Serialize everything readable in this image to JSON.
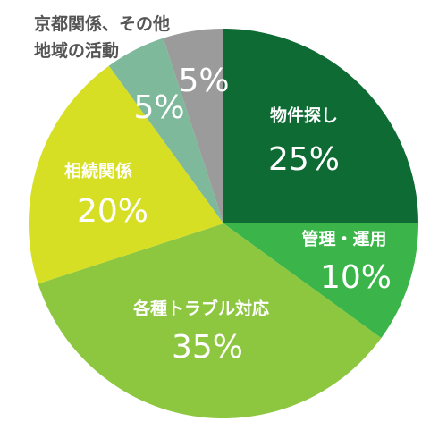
{
  "chart_data": {
    "type": "pie",
    "categories": [
      "物件探し",
      "管理・運用",
      "各種トラブル対応",
      "相続関係",
      null,
      "京都関係、その他地域の活動"
    ],
    "values": [
      25,
      10,
      35,
      20,
      5,
      5
    ],
    "value_labels": [
      "25%",
      "10%",
      "35%",
      "20%",
      "5%",
      "5%"
    ],
    "colors": [
      "#0e6b34",
      "#3bb54a",
      "#8dc63f",
      "#d6df24",
      "#7fb99b",
      "#9b9b9b"
    ]
  }
}
